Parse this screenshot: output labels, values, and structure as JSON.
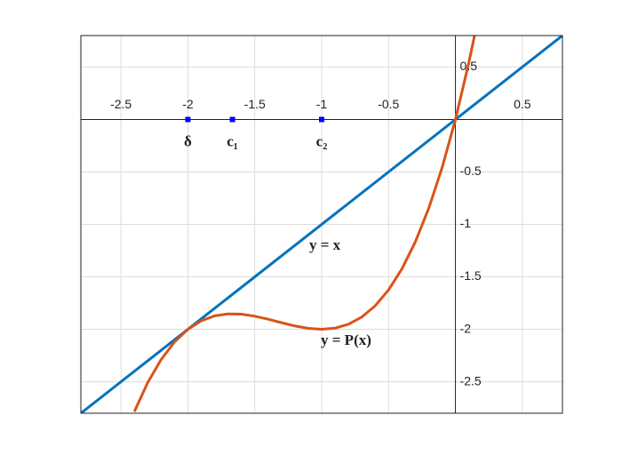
{
  "chart_data": {
    "type": "line",
    "xlim": [
      -2.8,
      0.8
    ],
    "ylim": [
      -2.8,
      0.8
    ],
    "xticks": [
      -2.5,
      -2,
      -1.5,
      -1,
      -0.5,
      0.5
    ],
    "yticks": [
      0.5,
      -0.5,
      -1,
      -1.5,
      -2,
      -2.5
    ],
    "grid": true,
    "series": [
      {
        "color": "#0072bd",
        "x": [
          -2.8,
          0.8
        ],
        "values": [
          -2.8,
          0.8
        ]
      },
      {
        "color": "#d95319",
        "x": [
          -2.4,
          -2.3,
          -2.2,
          -2.1,
          -2.0,
          -1.9,
          -1.8,
          -1.7,
          -1.6,
          -1.5,
          -1.4,
          -1.3,
          -1.2,
          -1.1,
          -1.0,
          -0.9,
          -0.8,
          -0.7,
          -0.6,
          -0.5,
          -0.4,
          -0.3,
          -0.2,
          -0.1,
          0,
          0.1,
          0.15
        ],
        "values": [
          -2.784,
          -2.507,
          -2.288,
          -2.121,
          -2,
          -1.919,
          -1.872,
          -1.853,
          -1.856,
          -1.875,
          -1.904,
          -1.937,
          -1.968,
          -1.991,
          -2,
          -1.989,
          -1.952,
          -1.883,
          -1.776,
          -1.625,
          -1.424,
          -1.167,
          -0.848,
          -0.461,
          0,
          0.541,
          0.843
        ]
      }
    ],
    "points": {
      "color": "#0000ff",
      "x": [
        -2,
        -1.667,
        -1
      ],
      "values": [
        0,
        0,
        0
      ],
      "labels": [
        "δ",
        "c₁",
        "c₂"
      ]
    },
    "annotations": [
      "y = x",
      "y = P(x)"
    ]
  }
}
